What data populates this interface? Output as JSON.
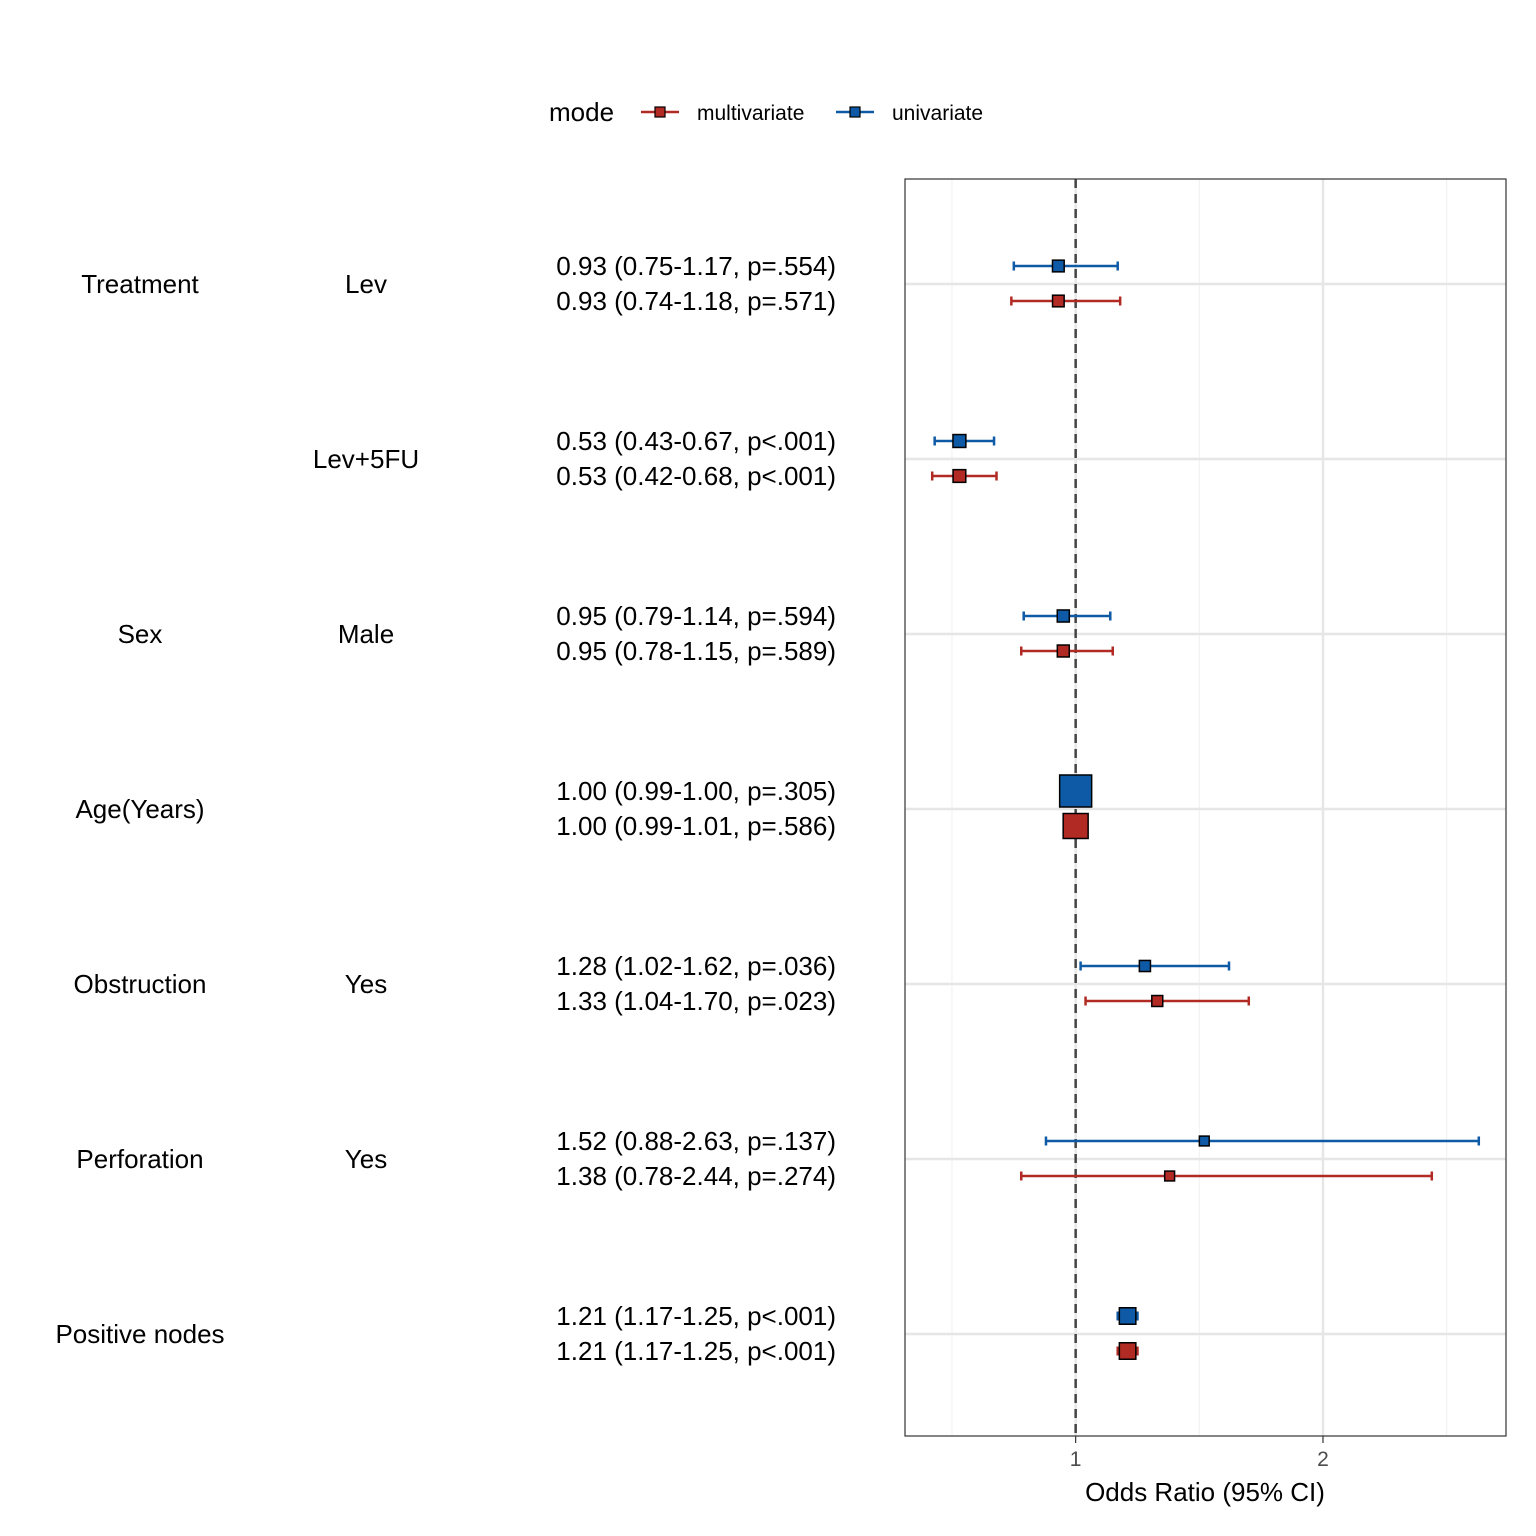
{
  "chart_data": {
    "type": "forest",
    "xlabel": "Odds Ratio (95% CI)",
    "xlim": [
      0.31,
      2.74
    ],
    "xticks": [
      1,
      2
    ],
    "x_minor_gridlines": [
      0.5,
      1.5,
      2.5
    ],
    "reference_line": 1,
    "grid": true,
    "legend": {
      "title": "mode",
      "position": "top",
      "entries": [
        {
          "name": "multivariate",
          "color": "#B22A24"
        },
        {
          "name": "univariate",
          "color": "#0F5AA6"
        }
      ]
    },
    "rows": [
      {
        "variable": "Treatment",
        "level": "Lev",
        "univariate": {
          "label": "0.93 (0.75-1.17, p=.554)",
          "or": 0.93,
          "lo": 0.75,
          "hi": 1.17
        },
        "multivariate": {
          "label": "0.93 (0.74-1.18, p=.571)",
          "or": 0.93,
          "lo": 0.74,
          "hi": 1.18
        }
      },
      {
        "variable": "",
        "level": "Lev+5FU",
        "univariate": {
          "label": "0.53 (0.43-0.67, p<.001)",
          "or": 0.53,
          "lo": 0.43,
          "hi": 0.67
        },
        "multivariate": {
          "label": "0.53 (0.42-0.68, p<.001)",
          "or": 0.53,
          "lo": 0.42,
          "hi": 0.68
        }
      },
      {
        "variable": "Sex",
        "level": "Male",
        "univariate": {
          "label": "0.95 (0.79-1.14, p=.594)",
          "or": 0.95,
          "lo": 0.79,
          "hi": 1.14
        },
        "multivariate": {
          "label": "0.95 (0.78-1.15, p=.589)",
          "or": 0.95,
          "lo": 0.78,
          "hi": 1.15
        }
      },
      {
        "variable": "Age(Years)",
        "level": "",
        "univariate": {
          "label": "1.00 (0.99-1.00, p=.305)",
          "or": 1.0,
          "lo": 0.99,
          "hi": 1.0
        },
        "multivariate": {
          "label": "1.00 (0.99-1.01, p=.586)",
          "or": 1.0,
          "lo": 0.99,
          "hi": 1.01
        }
      },
      {
        "variable": "Obstruction",
        "level": "Yes",
        "univariate": {
          "label": "1.28 (1.02-1.62, p=.036)",
          "or": 1.28,
          "lo": 1.02,
          "hi": 1.62
        },
        "multivariate": {
          "label": "1.33 (1.04-1.70, p=.023)",
          "or": 1.33,
          "lo": 1.04,
          "hi": 1.7
        }
      },
      {
        "variable": "Perforation",
        "level": "Yes",
        "univariate": {
          "label": "1.52 (0.88-2.63, p=.137)",
          "or": 1.52,
          "lo": 0.88,
          "hi": 2.63
        },
        "multivariate": {
          "label": "1.38 (0.78-2.44, p=.274)",
          "or": 1.38,
          "lo": 0.78,
          "hi": 2.44
        }
      },
      {
        "variable": "Positive nodes",
        "level": "",
        "univariate": {
          "label": "1.21 (1.17-1.25, p<.001)",
          "or": 1.21,
          "lo": 1.17,
          "hi": 1.25
        },
        "multivariate": {
          "label": "1.21 (1.17-1.25, p<.001)",
          "or": 1.21,
          "lo": 1.17,
          "hi": 1.25
        }
      }
    ]
  }
}
